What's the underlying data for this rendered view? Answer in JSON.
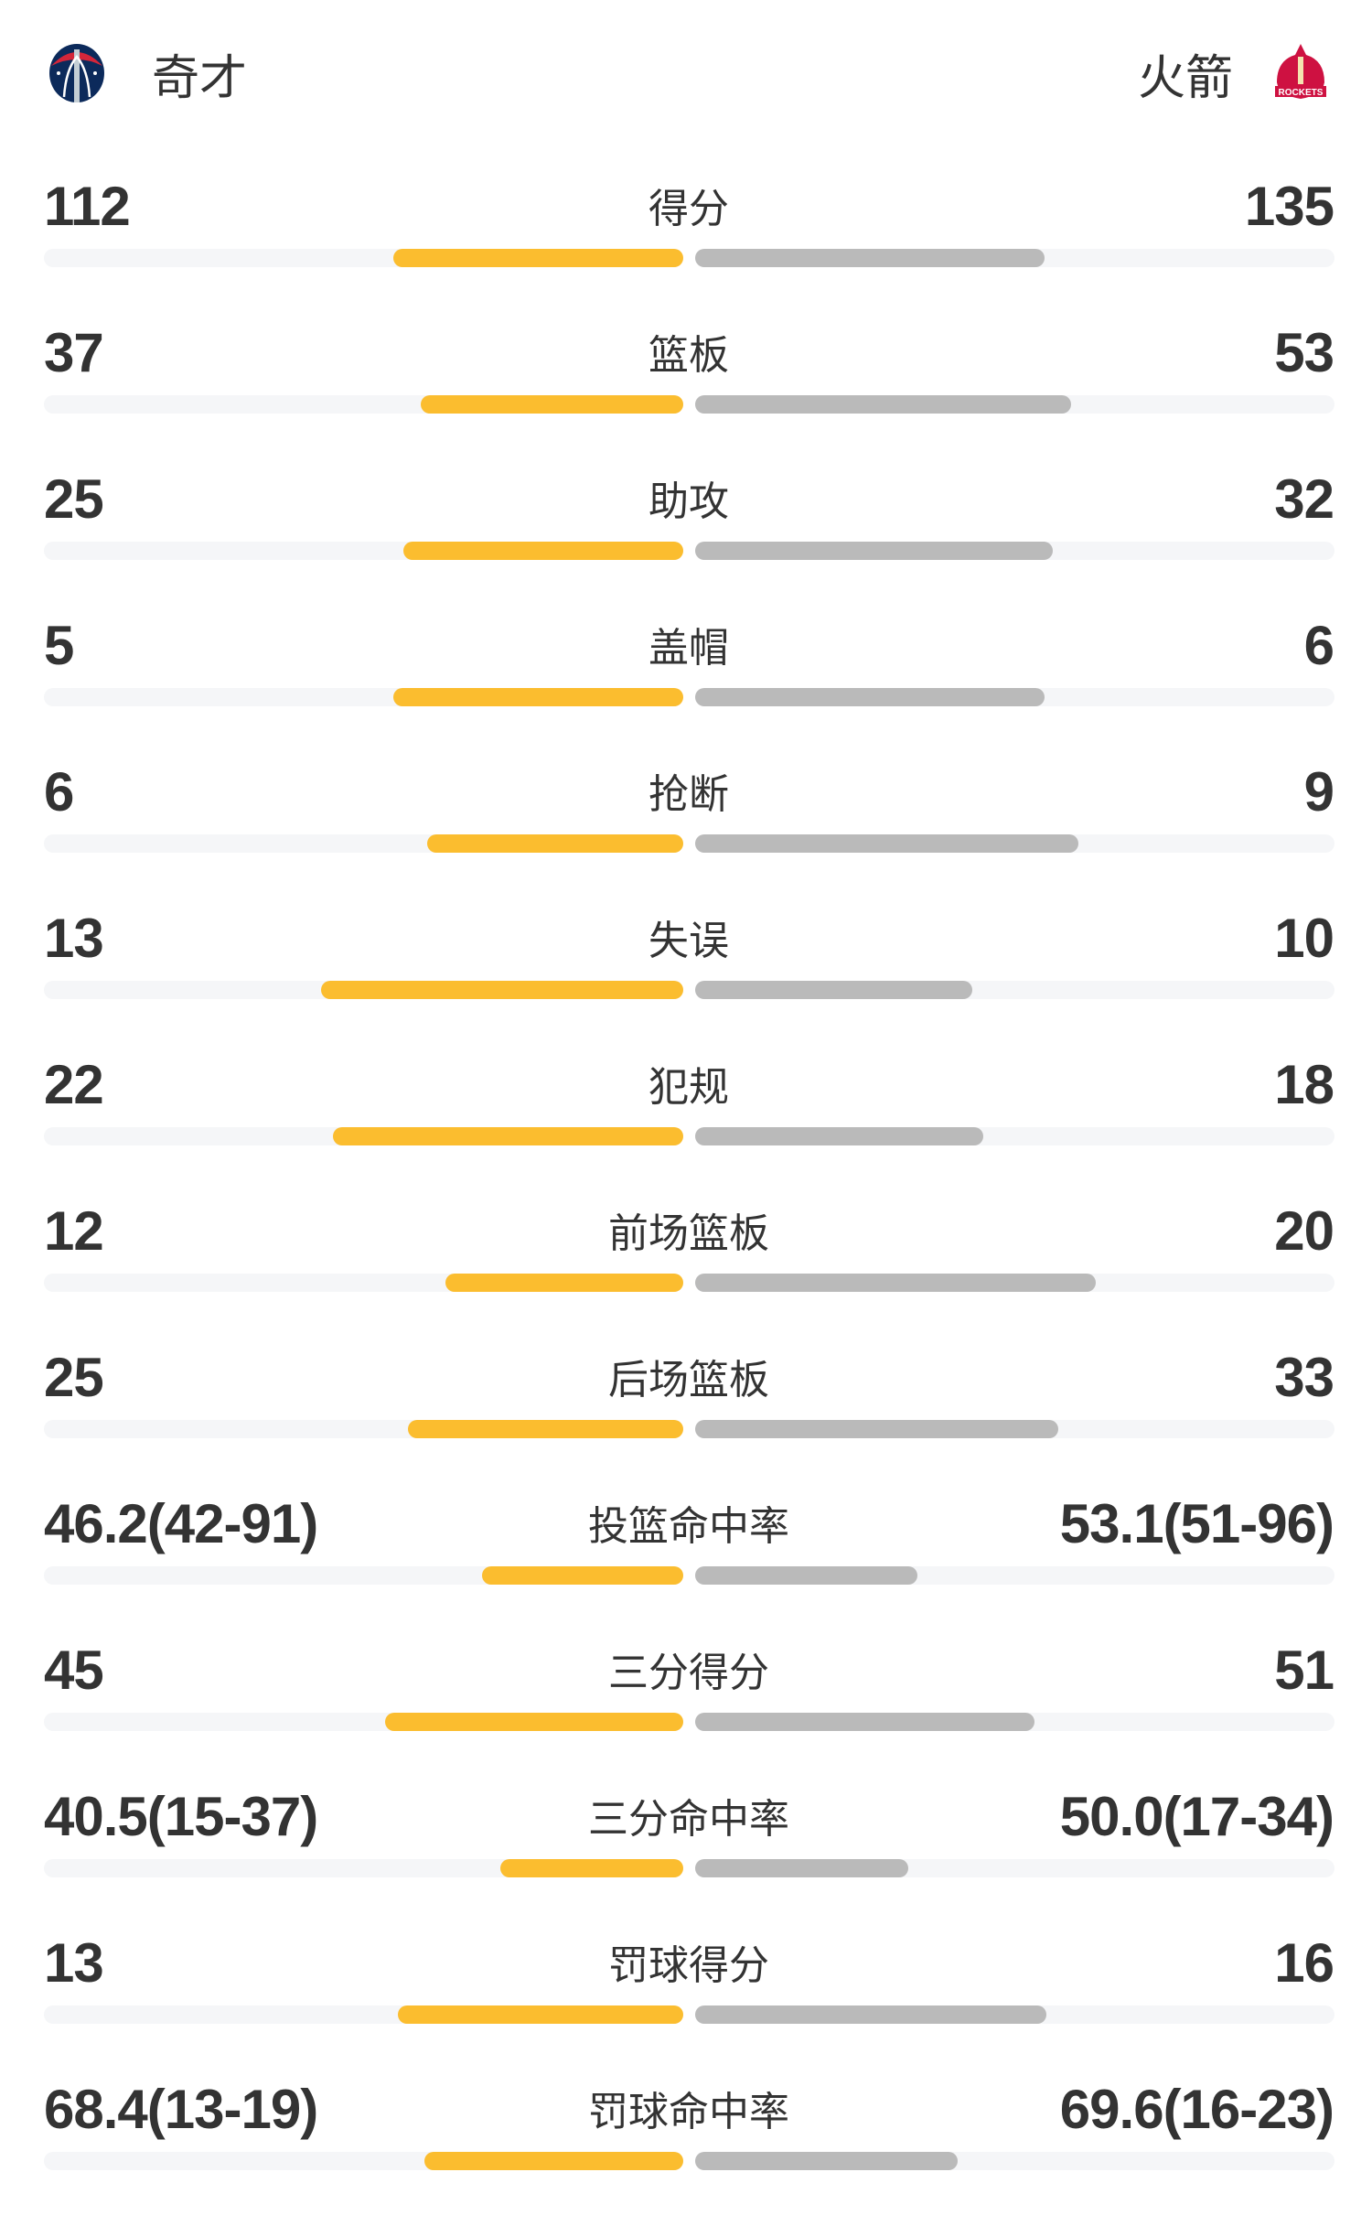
{
  "header": {
    "home_team": "奇才",
    "away_team": "火箭",
    "home_logo": "wizards-logo-icon",
    "away_logo": "rockets-logo-icon",
    "away_logo_text": "ROCKETS"
  },
  "colors": {
    "home_bar": "#fbbd2f",
    "away_bar": "#bababa",
    "track": "#f5f6f8"
  },
  "stats": [
    {
      "label": "得分",
      "home": "112",
      "away": "135",
      "home_fill": 0.454,
      "away_fill": 0.546
    },
    {
      "label": "篮板",
      "home": "37",
      "away": "53",
      "home_fill": 0.41,
      "away_fill": 0.588
    },
    {
      "label": "助攻",
      "home": "25",
      "away": "32",
      "home_fill": 0.438,
      "away_fill": 0.56
    },
    {
      "label": "盖帽",
      "home": "5",
      "away": "6",
      "home_fill": 0.454,
      "away_fill": 0.546
    },
    {
      "label": "抢断",
      "home": "6",
      "away": "9",
      "home_fill": 0.4,
      "away_fill": 0.6
    },
    {
      "label": "失误",
      "home": "13",
      "away": "10",
      "home_fill": 0.566,
      "away_fill": 0.434
    },
    {
      "label": "犯规",
      "home": "22",
      "away": "18",
      "home_fill": 0.548,
      "away_fill": 0.45
    },
    {
      "label": "前场篮板",
      "home": "12",
      "away": "20",
      "home_fill": 0.372,
      "away_fill": 0.626
    },
    {
      "label": "后场篮板",
      "home": "25",
      "away": "33",
      "home_fill": 0.43,
      "away_fill": 0.568
    },
    {
      "label": "投篮命中率",
      "home": "46.2(42-91)",
      "away": "53.1(51-96)",
      "home_fill": 0.315,
      "away_fill": 0.348
    },
    {
      "label": "三分得分",
      "home": "45",
      "away": "51",
      "home_fill": 0.467,
      "away_fill": 0.531
    },
    {
      "label": "三分命中率",
      "home": "40.5(15-37)",
      "away": "50.0(17-34)",
      "home_fill": 0.286,
      "away_fill": 0.333
    },
    {
      "label": "罚球得分",
      "home": "13",
      "away": "16",
      "home_fill": 0.447,
      "away_fill": 0.55
    },
    {
      "label": "罚球命中率",
      "home": "68.4(13-19)",
      "away": "69.6(16-23)",
      "home_fill": 0.405,
      "away_fill": 0.41
    }
  ]
}
